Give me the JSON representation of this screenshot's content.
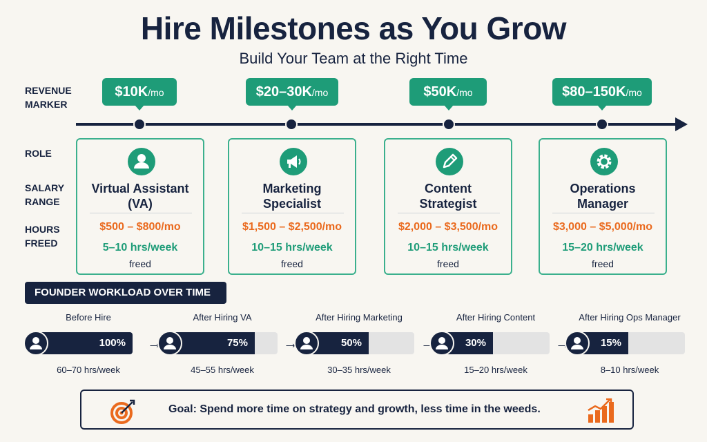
{
  "header": {
    "title": "Hire Milestones as You Grow",
    "subtitle": "Build Your Team at the Right Time"
  },
  "row_labels": {
    "revenue_line1": "REVENUE",
    "revenue_line2": "MARKER",
    "role": "ROLE",
    "salary_line1": "SALARY",
    "salary_line2": "RANGE",
    "hours_line1": "HOURS",
    "hours_line2": "FREED"
  },
  "milestones": [
    {
      "revenue": "$10K",
      "unit": "/mo",
      "role_line1": "Virtual Assistant",
      "role_line2": "(VA)",
      "salary": "$500 – $800/mo",
      "hours": "5–10 hrs/week",
      "freed": "freed",
      "icon": "person-icon"
    },
    {
      "revenue": "$20–30K",
      "unit": "/mo",
      "role_line1": "Marketing",
      "role_line2": "Specialist",
      "salary": "$1,500 – $2,500/mo",
      "hours": "10–15 hrs/week",
      "freed": "freed",
      "icon": "megaphone-icon"
    },
    {
      "revenue": "$50K",
      "unit": "/mo",
      "role_line1": "Content",
      "role_line2": "Strategist",
      "salary": "$2,000 – $3,500/mo",
      "hours": "10–15 hrs/week",
      "freed": "freed",
      "icon": "pencil-icon"
    },
    {
      "revenue": "$80–150K",
      "unit": "/mo",
      "role_line1": "Operations",
      "role_line2": "Manager",
      "salary": "$3,000 – $5,000/mo",
      "hours": "15–20 hrs/week",
      "freed": "freed",
      "icon": "gear-icon"
    }
  ],
  "workload": {
    "header": "FOUNDER WORKLOAD OVER TIME",
    "steps": [
      {
        "label": "Before Hire",
        "percent_text": "100%",
        "fill": 1.0,
        "hours": "60–70 hrs/week"
      },
      {
        "label": "After Hiring VA",
        "percent_text": "75%",
        "fill": 0.75,
        "hours": "45–55 hrs/week"
      },
      {
        "label": "After Hiring Marketing",
        "percent_text": "50%",
        "fill": 0.5,
        "hours": "30–35 hrs/week"
      },
      {
        "label": "After Hiring Content",
        "percent_text": "30%",
        "fill": 0.3,
        "hours": "15–20 hrs/week"
      },
      {
        "label": "After Hiring Ops Manager",
        "percent_text": "15%",
        "fill": 0.15,
        "hours": "8–10 hrs/week"
      }
    ]
  },
  "goal": {
    "text": "Goal: Spend more time on strategy and growth, less time in the weeds.",
    "left_icon": "target-icon",
    "right_icon": "growth-chart-icon"
  },
  "colors": {
    "navy": "#17233f",
    "green": "#1e9c78",
    "orange": "#ea6a1e"
  }
}
